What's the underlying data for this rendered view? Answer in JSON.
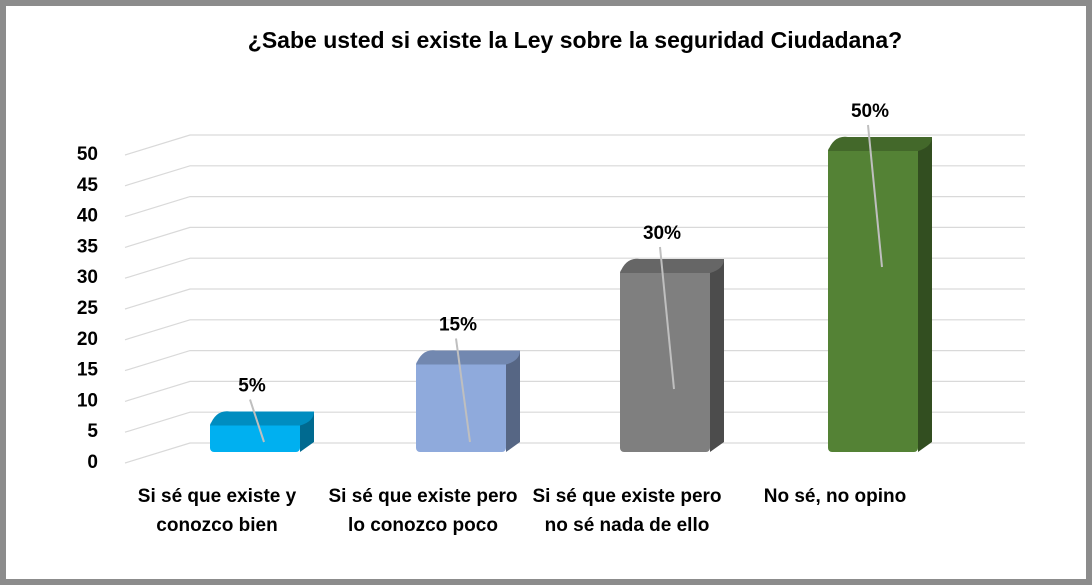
{
  "chart_data": {
    "type": "bar3d",
    "title": "¿Sabe usted si existe la Ley sobre la seguridad Ciudadana?",
    "categories": [
      "Si sé que existe y conozco bien",
      "Si sé que existe pero lo conozco poco",
      "Si sé que existe pero no sé nada de ello",
      "No sé, no opino"
    ],
    "values": [
      5,
      15,
      30,
      50
    ],
    "value_labels": [
      "5%",
      "15%",
      "30%",
      "50%"
    ],
    "colors": [
      "#00b0f0",
      "#8faadc",
      "#7f7f7f",
      "#548235"
    ],
    "ylim": [
      0,
      50
    ],
    "yticks": [
      0,
      5,
      10,
      15,
      20,
      25,
      30,
      35,
      40,
      45,
      50
    ],
    "grid": true
  }
}
